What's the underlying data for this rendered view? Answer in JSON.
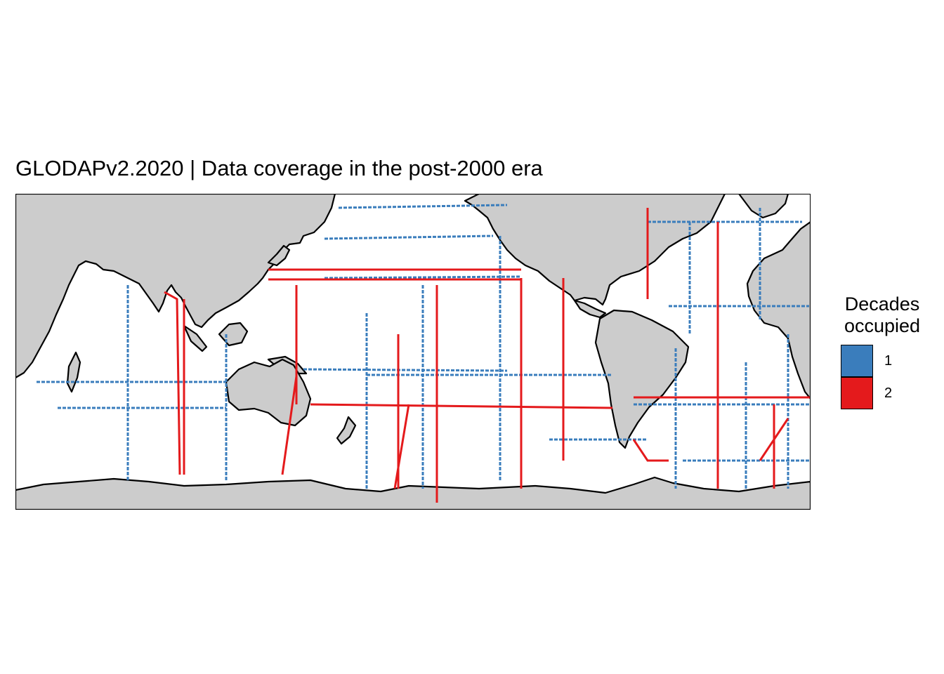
{
  "title": "GLODAPv2.2020 | Data coverage in the post-2000 era",
  "colors": {
    "ocean": "#ffffff",
    "land": "#cccccc",
    "coastline": "#000000",
    "decades_1": "#3a7dbc",
    "decades_2": "#e41a1c"
  },
  "legend": {
    "title_line1": "Decades",
    "title_line2": "occupied",
    "items": [
      {
        "label": "1",
        "color": "#3a7dbc"
      },
      {
        "label": "2",
        "color": "#e41a1c"
      }
    ]
  },
  "map": {
    "projection": "equirectangular, Pacific-centred",
    "lon_range": [
      20,
      380
    ],
    "lat_range": [
      -80,
      65
    ],
    "grid": false
  }
}
